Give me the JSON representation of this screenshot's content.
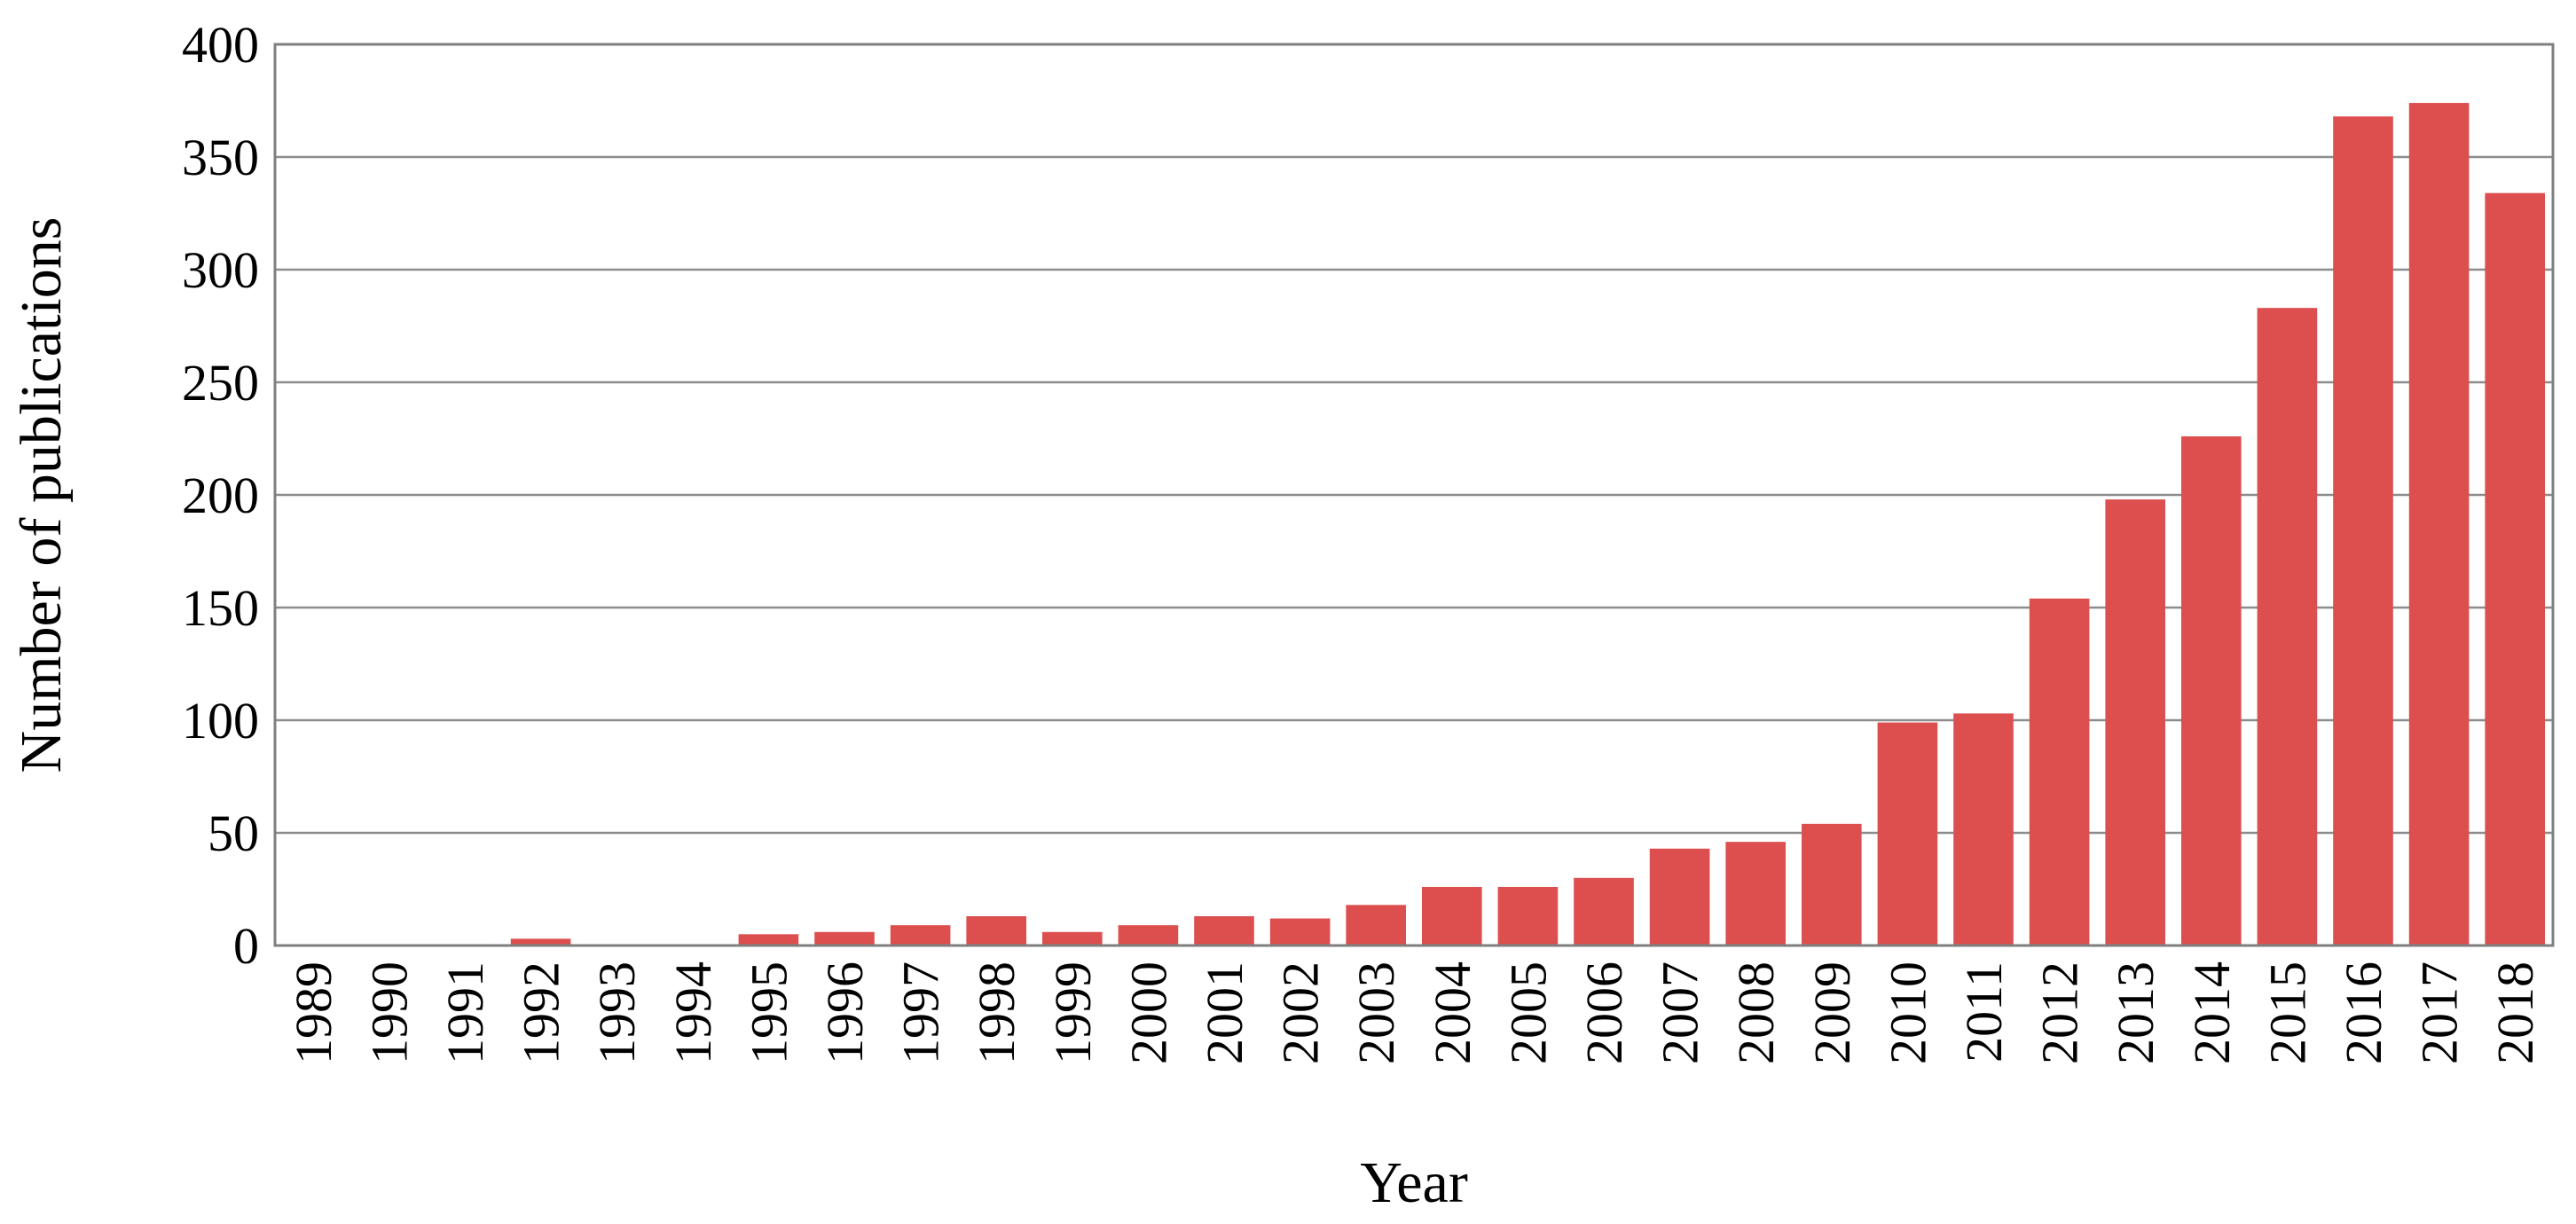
{
  "chart_data": {
    "type": "bar",
    "title": "",
    "xlabel": "Year",
    "ylabel": "Number of publications",
    "ylim": [
      0,
      400
    ],
    "yticks": [
      "0",
      "50",
      "100",
      "150",
      "200",
      "250",
      "300",
      "350",
      "400"
    ],
    "grid": "horizontal",
    "legend": "none",
    "bar_color": "#dd4f4f",
    "categories": [
      "1989",
      "1990",
      "1991",
      "1992",
      "1993",
      "1994",
      "1995",
      "1996",
      "1997",
      "1998",
      "1999",
      "2000",
      "2001",
      "2002",
      "2003",
      "2004",
      "2005",
      "2006",
      "2007",
      "2008",
      "2009",
      "2010",
      "2011",
      "2012",
      "2013",
      "2014",
      "2015",
      "2016",
      "2017",
      "2018"
    ],
    "values": [
      0,
      0,
      0,
      3,
      0,
      0,
      5,
      6,
      9,
      13,
      6,
      9,
      13,
      12,
      18,
      26,
      26,
      30,
      43,
      46,
      54,
      99,
      103,
      154,
      198,
      226,
      283,
      368,
      374,
      334
    ]
  }
}
